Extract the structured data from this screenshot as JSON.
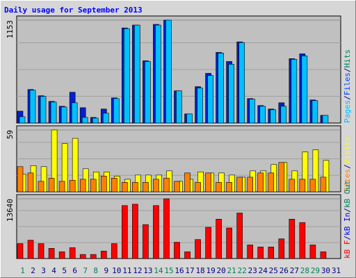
{
  "title": "Daily usage for September 2013",
  "chart_data": [
    {
      "type": "bar",
      "ylim": [
        0,
        1153
      ],
      "yticks": [
        1153
      ],
      "legend_separator": "/",
      "legend": [
        {
          "name": "Pages",
          "color": "#00c0ff"
        },
        {
          "name": "Files",
          "color": "#0040ff"
        },
        {
          "name": "Hits",
          "color": "#00805c"
        }
      ],
      "series": [
        {
          "legend_index": 1,
          "color": "#0020d0",
          "values": [
            133,
            376,
            306,
            243,
            188,
            345,
            172,
            63,
            157,
            282,
            1066,
            1098,
            698,
            1106,
            1153,
            361,
            102,
            408,
            557,
            792,
            690,
            910,
            274,
            196,
            157,
            227,
            722,
            776,
            259,
            86,
            0
          ]
        },
        {
          "legend_index": 0,
          "color": "#00c0ff",
          "values": [
            71,
            368,
            298,
            235,
            180,
            227,
            63,
            55,
            110,
            274,
            1058,
            1098,
            690,
            1098,
            1153,
            361,
            102,
            392,
            533,
            784,
            659,
            902,
            267,
            188,
            149,
            188,
            714,
            753,
            251,
            86,
            0
          ]
        }
      ]
    },
    {
      "type": "bar",
      "ylim": [
        0,
        59
      ],
      "yticks": [
        59
      ],
      "legend_separator": "/",
      "legend": [
        {
          "name": "Sites",
          "color": "#ff8000"
        },
        {
          "name": "Visits",
          "color": "#ffff00"
        }
      ],
      "series": [
        {
          "legend_index": 1,
          "color": "#ffff00",
          "values": [
            17,
            25,
            24,
            59,
            46,
            51,
            22,
            19,
            19,
            15,
            12,
            16,
            16,
            16,
            20,
            10,
            12,
            19,
            18,
            18,
            16,
            14,
            20,
            20,
            26,
            28,
            20,
            38,
            40,
            30,
            0
          ]
        },
        {
          "legend_index": 0,
          "color": "#ff8000",
          "values": [
            24,
            18,
            10,
            13,
            10,
            11,
            12,
            12,
            15,
            13,
            9,
            9,
            9,
            12,
            13,
            10,
            18,
            9,
            18,
            9,
            9,
            14,
            14,
            18,
            18,
            28,
            12,
            12,
            12,
            14,
            0
          ]
        }
      ]
    },
    {
      "type": "bar",
      "ylim": [
        0,
        13640
      ],
      "yticks": [
        13640
      ],
      "legend_separator": "/",
      "legend": [
        {
          "name": "kB F",
          "color": "#ff0000"
        },
        {
          "name": "kB In",
          "color": "#0000ff"
        },
        {
          "name": "kB Out",
          "color": "#00805c"
        }
      ],
      "series": [
        {
          "legend_index": 0,
          "color": "#ff0000",
          "values": [
            3410,
            4185,
            3410,
            2325,
            1550,
            2480,
            930,
            930,
            1705,
            3410,
            12090,
            12400,
            7750,
            12090,
            13640,
            3720,
            1550,
            4340,
            7130,
            8990,
            6975,
            10385,
            3100,
            2635,
            2635,
            4495,
            8990,
            8215,
            3100,
            1550,
            0
          ]
        }
      ],
      "categories": [
        "1",
        "2",
        "3",
        "4",
        "5",
        "6",
        "7",
        "8",
        "9",
        "10",
        "11",
        "12",
        "13",
        "14",
        "15",
        "16",
        "17",
        "18",
        "19",
        "20",
        "21",
        "22",
        "23",
        "24",
        "25",
        "26",
        "27",
        "28",
        "29",
        "30",
        "31"
      ],
      "weekend_color": "#00805c",
      "weekday_color": "#000080",
      "weekends": [
        0,
        6,
        7,
        13,
        14,
        20,
        21,
        27,
        28
      ]
    }
  ]
}
